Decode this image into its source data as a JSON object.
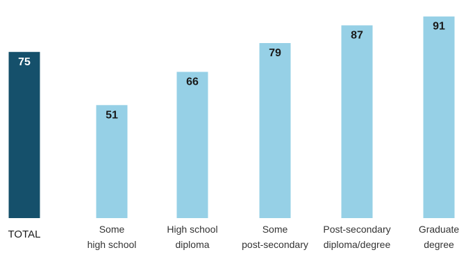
{
  "chart_data": {
    "type": "bar",
    "categories": [
      [
        "TOTAL"
      ],
      [
        "Some",
        "high school"
      ],
      [
        "High school",
        "diploma"
      ],
      [
        "Some",
        "post-secondary"
      ],
      [
        "Post-secondary",
        "diploma/degree"
      ],
      [
        "Graduate",
        "degree"
      ]
    ],
    "values": [
      75,
      51,
      66,
      79,
      87,
      91
    ],
    "highlight_index": 0,
    "ylim": [
      0,
      100
    ],
    "grid": false,
    "colors": {
      "total": "#15506b",
      "category": "#96d0e6",
      "label": "#1a1a1a",
      "total_value_text": "#ffffff"
    }
  }
}
